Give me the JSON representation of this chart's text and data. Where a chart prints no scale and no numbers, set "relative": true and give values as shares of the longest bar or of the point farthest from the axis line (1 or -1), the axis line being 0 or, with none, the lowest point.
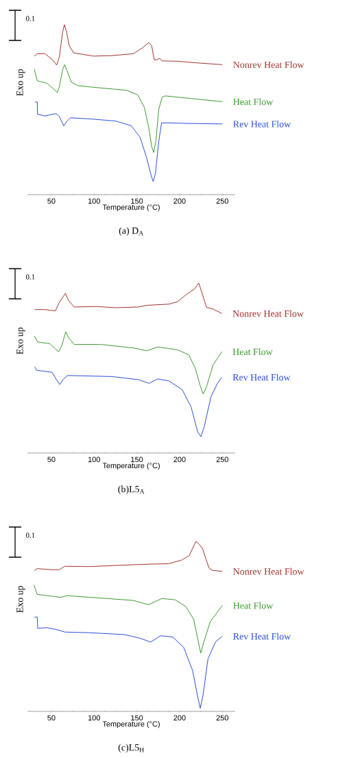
{
  "chart_data": [
    {
      "type": "line",
      "title": "(a) D$_{A}$",
      "xlabel": "Temperature (°C)",
      "ylabel": "Exo up",
      "annotations": [
        "0.1"
      ],
      "relative": true,
      "xlim": [
        22,
        265
      ],
      "xticks": [
        50,
        100,
        150,
        200,
        250
      ],
      "series": [
        {
          "name": "Nonrev Heat Flow",
          "color": "#a0322d",
          "x": [
            30.1,
            33.5,
            42.5,
            51.6,
            56.2,
            59.3,
            63.2,
            65.2,
            67.8,
            70.9,
            76.1,
            99.4,
            120,
            145.9,
            156.2,
            164,
            167.3,
            170.4,
            173,
            176.9,
            179.5,
            197.5,
            223.4,
            250
          ],
          "values": [
            0.815,
            0.829,
            0.829,
            0.793,
            0.762,
            0.809,
            0.957,
            1.0,
            0.957,
            0.876,
            0.834,
            0.815,
            0.818,
            0.829,
            0.863,
            0.894,
            0.876,
            0.793,
            0.793,
            0.802,
            0.787,
            0.785,
            0.774,
            0.765
          ]
        },
        {
          "name": "Heat Flow",
          "color": "#3c9a2e",
          "x": [
            30.1,
            33.5,
            45.1,
            52.8,
            56.7,
            59.3,
            63.2,
            65.5,
            68.3,
            73.5,
            81.3,
            107.1,
            138.1,
            151,
            158.8,
            164,
            167.3,
            169.6,
            172.2,
            175.6,
            179.5,
            183.3,
            210.5,
            250
          ],
          "values": [
            0.738,
            0.67,
            0.655,
            0.621,
            0.601,
            0.634,
            0.735,
            0.765,
            0.729,
            0.661,
            0.641,
            0.628,
            0.614,
            0.587,
            0.513,
            0.392,
            0.285,
            0.248,
            0.312,
            0.5,
            0.574,
            0.581,
            0.567,
            0.547
          ]
        },
        {
          "name": "Rev Heat Flow",
          "color": "#2b4fd6",
          "x": [
            30.9,
            33.5,
            33.7,
            42.5,
            51.6,
            55.4,
            59.3,
            64.5,
            68.3,
            72.2,
            94.2,
            125.2,
            143.3,
            153.6,
            161.4,
            166.5,
            169.1,
            171.7,
            175.6,
            178.9,
            187.2,
            210.5,
            250
          ],
          "values": [
            0.545,
            0.545,
            0.473,
            0.463,
            0.473,
            0.477,
            0.46,
            0.404,
            0.433,
            0.452,
            0.446,
            0.433,
            0.406,
            0.339,
            0.218,
            0.117,
            0.077,
            0.124,
            0.312,
            0.422,
            0.422,
            0.419,
            0.416
          ]
        }
      ]
    },
    {
      "type": "line",
      "title": "(b)L5$_{A}$",
      "xlabel": "Temperature (°C)",
      "ylabel": "Exo up",
      "annotations": [
        "0.1"
      ],
      "relative": true,
      "xlim": [
        22,
        265
      ],
      "xticks": [
        50,
        100,
        150,
        200,
        250
      ],
      "series": [
        {
          "name": "Nonrev Heat Flow",
          "color": "#a0322d",
          "x": [
            30.6,
            43,
            54.6,
            59,
            66.3,
            70.1,
            76.6,
            102.4,
            125.6,
            151.4,
            161.7,
            187.5,
            197.9,
            208.2,
            217.2,
            222.4,
            226.3,
            231.4,
            239.2,
            249.5
          ],
          "values": [
            0.844,
            0.844,
            0.836,
            0.883,
            0.939,
            0.898,
            0.859,
            0.862,
            0.855,
            0.859,
            0.869,
            0.876,
            0.891,
            0.934,
            0.964,
            1.0,
            0.941,
            0.857,
            0.847,
            0.821
          ]
        },
        {
          "name": "Heat Flow",
          "color": "#3c9a2e",
          "x": [
            30.1,
            34,
            48.2,
            54.6,
            58.5,
            62.4,
            66.8,
            70.1,
            76.6,
            107.5,
            146.3,
            161.7,
            174.6,
            197.9,
            210.8,
            218.5,
            223.7,
            227.5,
            231.4,
            239.2,
            249.5
          ],
          "values": [
            0.689,
            0.653,
            0.643,
            0.614,
            0.595,
            0.636,
            0.712,
            0.679,
            0.639,
            0.639,
            0.618,
            0.602,
            0.624,
            0.607,
            0.577,
            0.497,
            0.403,
            0.347,
            0.388,
            0.519,
            0.596
          ]
        },
        {
          "name": "Rev Heat Flow",
          "color": "#2b4fd6",
          "x": [
            30.6,
            32.7,
            50.8,
            55.9,
            59.8,
            63.7,
            68.8,
            120.5,
            151.4,
            164.3,
            174.6,
            187.5,
            203,
            213.4,
            221.1,
            225,
            228.8,
            236.6,
            244.3,
            249.5
          ],
          "values": [
            0.507,
            0.487,
            0.475,
            0.432,
            0.403,
            0.432,
            0.456,
            0.45,
            0.432,
            0.41,
            0.436,
            0.424,
            0.373,
            0.272,
            0.125,
            0.096,
            0.155,
            0.329,
            0.41,
            0.446
          ]
        }
      ]
    },
    {
      "type": "line",
      "title": "(c)L5$_{H}$",
      "xlabel": "Temperature (°C)",
      "ylabel": "Exo up",
      "annotations": [
        "0.1"
      ],
      "relative": true,
      "xlim": [
        22,
        265
      ],
      "xticks": [
        50,
        100,
        150,
        200,
        250
      ],
      "series": [
        {
          "name": "Nonrev Heat Flow",
          "color": "#a0322d",
          "x": [
            30.2,
            33.5,
            50.3,
            59.3,
            65.7,
            94.1,
            145.6,
            168.8,
            186.9,
            202.3,
            211.3,
            215.2,
            219.1,
            222.9,
            226.8,
            230.7,
            234.5,
            238.4,
            250
          ],
          "values": [
            0.83,
            0.84,
            0.834,
            0.834,
            0.854,
            0.852,
            0.863,
            0.867,
            0.869,
            0.89,
            0.917,
            0.959,
            1.0,
            0.983,
            0.959,
            0.897,
            0.843,
            0.83,
            0.824
          ]
        },
        {
          "name": "Heat Flow",
          "color": "#3c9a2e",
          "x": [
            29.6,
            33.5,
            50.3,
            60.6,
            68.3,
            107,
            145.6,
            163.7,
            179.1,
            194.6,
            207.5,
            216.5,
            221.6,
            224.7,
            228.1,
            235.8,
            250
          ],
          "values": [
            0.744,
            0.688,
            0.678,
            0.671,
            0.681,
            0.667,
            0.653,
            0.628,
            0.664,
            0.657,
            0.616,
            0.541,
            0.418,
            0.343,
            0.404,
            0.528,
            0.623
          ]
        },
        {
          "name": "Rev Heat Flow",
          "color": "#2b4fd6",
          "x": [
            30.2,
            33.5,
            34,
            45.1,
            58,
            65.7,
            94.1,
            135.3,
            153.4,
            166.2,
            177.8,
            192,
            204.9,
            215.2,
            221.6,
            224.2,
            227.6,
            233.2,
            242.3,
            250
          ],
          "values": [
            0.555,
            0.555,
            0.489,
            0.493,
            0.479,
            0.467,
            0.463,
            0.452,
            0.431,
            0.408,
            0.445,
            0.438,
            0.376,
            0.24,
            0.076,
            0.018,
            0.102,
            0.309,
            0.411,
            0.442
          ]
        }
      ]
    }
  ]
}
